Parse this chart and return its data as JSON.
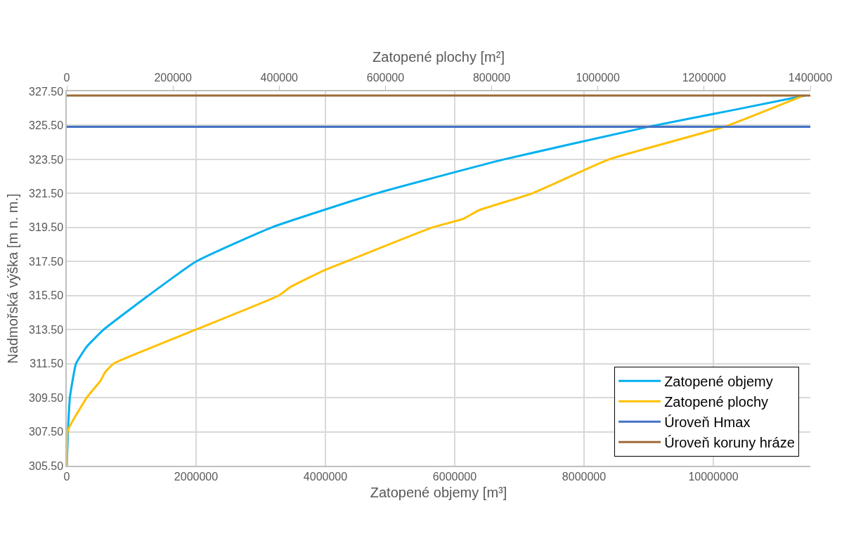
{
  "chart_data": {
    "type": "line",
    "xlabel": "Zatopené objemy [m³]",
    "x2label": "Zatopené plochy [m²]",
    "ylabel": "Nadmořská výška [m n. m.]",
    "xlim": [
      0,
      11500000
    ],
    "xticks": [
      0,
      2000000,
      4000000,
      6000000,
      8000000,
      10000000
    ],
    "x2lim": [
      0,
      1400000
    ],
    "x2ticks": [
      0,
      200000,
      400000,
      600000,
      800000,
      1000000,
      1200000,
      1400000
    ],
    "ylim": [
      305.5,
      327.5
    ],
    "yticks": [
      {
        "value": 305.5,
        "label": "305.50"
      },
      {
        "value": 307.5,
        "label": "307.50"
      },
      {
        "value": 309.5,
        "label": "309.50"
      },
      {
        "value": 311.5,
        "label": "311.50"
      },
      {
        "value": 313.5,
        "label": "313.50"
      },
      {
        "value": 315.5,
        "label": "315.50"
      },
      {
        "value": 317.5,
        "label": "317.50"
      },
      {
        "value": 319.5,
        "label": "319.50"
      },
      {
        "value": 321.5,
        "label": "321.50"
      },
      {
        "value": 323.5,
        "label": "323.50"
      },
      {
        "value": 325.5,
        "label": "325.50"
      },
      {
        "value": 327.5,
        "label": "327.50"
      }
    ],
    "grid": true,
    "legend": "bottom right",
    "marker": "none",
    "line_style": "solid",
    "series": [
      {
        "name": "Zatopené objemy",
        "color": "#00b0f0",
        "x": [
          0,
          24000,
          48000,
          143000,
          310000,
          571000,
          1262000,
          2000000,
          3167000,
          4786000,
          6762000,
          9000000,
          10310000,
          11420000
        ],
        "values": [
          305.5,
          308.0,
          309.5,
          311.5,
          312.5,
          313.5,
          315.5,
          317.5,
          319.5,
          321.5,
          323.5,
          325.42,
          326.4,
          327.25
        ]
      },
      {
        "name": "Zatopené plochy",
        "color": "#ffc000",
        "axis": "x2",
        "x": [
          0,
          1500,
          8700,
          37600,
          63600,
          72300,
          88200,
          124000,
          243000,
          399000,
          421000,
          486000,
          526000,
          688000,
          746000,
          775000,
          876000,
          1021000,
          1238000,
          1387000
        ],
        "values": [
          305.5,
          307.5,
          308.0,
          309.5,
          310.5,
          311.0,
          311.5,
          312.0,
          313.5,
          315.5,
          316.0,
          317.0,
          317.5,
          319.5,
          320.0,
          320.5,
          321.5,
          323.5,
          325.42,
          327.25
        ]
      }
    ],
    "ref_lines": [
      {
        "axis": "y",
        "value": 325.42,
        "label": "Úroveň Hmax",
        "color": "#4472c4"
      },
      {
        "axis": "y",
        "value": 327.25,
        "label": "Úroveň koruny hráze",
        "color": "#9e6a38"
      }
    ]
  }
}
